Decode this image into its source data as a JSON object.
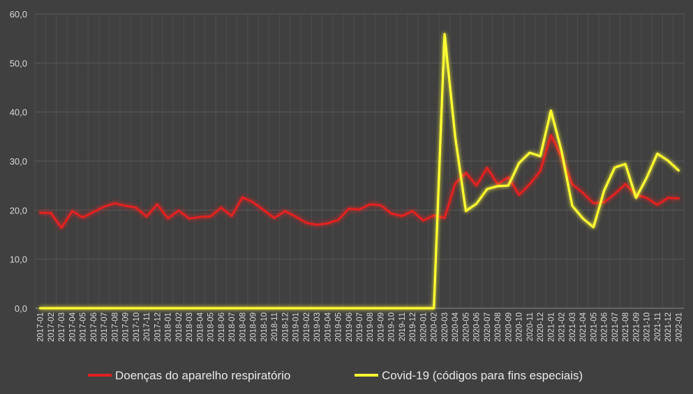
{
  "chart_data": {
    "type": "line",
    "title": "",
    "xlabel": "",
    "ylabel": "",
    "ylim": [
      0,
      60
    ],
    "yticks": [
      "0,0",
      "10,0",
      "20,0",
      "30,0",
      "40,0",
      "50,0",
      "60,0"
    ],
    "grid": true,
    "legend_position": "bottom",
    "categories": [
      "2017-01",
      "2017-02",
      "2017-03",
      "2017-04",
      "2017-05",
      "2017-06",
      "2017-07",
      "2017-08",
      "2017-09",
      "2017-10",
      "2017-11",
      "2017-12",
      "2018-01",
      "2018-02",
      "2018-03",
      "2018-04",
      "2018-05",
      "2018-06",
      "2018-07",
      "2018-08",
      "2018-09",
      "2018-10",
      "2018-11",
      "2018-12",
      "2019-01",
      "2019-02",
      "2019-03",
      "2019-04",
      "2019-05",
      "2019-06",
      "2019-07",
      "2019-08",
      "2019-09",
      "2019-10",
      "2019-11",
      "2019-12",
      "2020-01",
      "2020-02",
      "2020-03",
      "2020-04",
      "2020-05",
      "2020-06",
      "2020-07",
      "2020-08",
      "2020-09",
      "2020-10",
      "2020-11",
      "2020-12",
      "2021-01",
      "2021-02",
      "2021-03",
      "2021-04",
      "2021-05",
      "2021-06",
      "2021-07",
      "2021-08",
      "2021-09",
      "2021-10",
      "2021-11",
      "2021-12",
      "2022-01"
    ],
    "series": [
      {
        "name": "Doenças do aparelho respiratório",
        "color": "#e02020",
        "values": [
          19.5,
          19.4,
          16.4,
          19.8,
          18.5,
          19.6,
          20.7,
          21.4,
          20.9,
          20.5,
          18.7,
          21.2,
          18.3,
          19.9,
          18.3,
          18.6,
          18.7,
          20.5,
          18.8,
          22.6,
          21.6,
          20.0,
          18.4,
          19.8,
          18.7,
          17.4,
          17.0,
          17.3,
          18.0,
          20.3,
          20.1,
          21.2,
          21.0,
          19.3,
          18.8,
          19.8,
          17.9,
          18.9,
          18.4,
          25.4,
          27.6,
          25.0,
          28.6,
          25.3,
          26.7,
          23.1,
          25.3,
          28.0,
          35.3,
          30.8,
          25.3,
          23.5,
          21.4,
          21.6,
          23.3,
          25.3,
          23.1,
          22.5,
          21.1,
          22.5,
          22.4
        ]
      },
      {
        "name": "Covid-19 (códigos para fins especiais)",
        "color": "#ffff33",
        "values": [
          0,
          0,
          0,
          0,
          0,
          0,
          0,
          0,
          0,
          0,
          0,
          0,
          0,
          0,
          0,
          0,
          0,
          0,
          0,
          0,
          0,
          0,
          0,
          0,
          0,
          0,
          0,
          0,
          0,
          0,
          0,
          0,
          0,
          0,
          0,
          0,
          0,
          0,
          55.9,
          35.0,
          19.8,
          21.3,
          24.3,
          24.9,
          25.0,
          29.6,
          31.7,
          31.0,
          40.3,
          32.0,
          20.9,
          18.3,
          16.5,
          24.0,
          28.7,
          29.4,
          22.5,
          26.6,
          31.5,
          30.1,
          28.1
        ]
      }
    ]
  }
}
